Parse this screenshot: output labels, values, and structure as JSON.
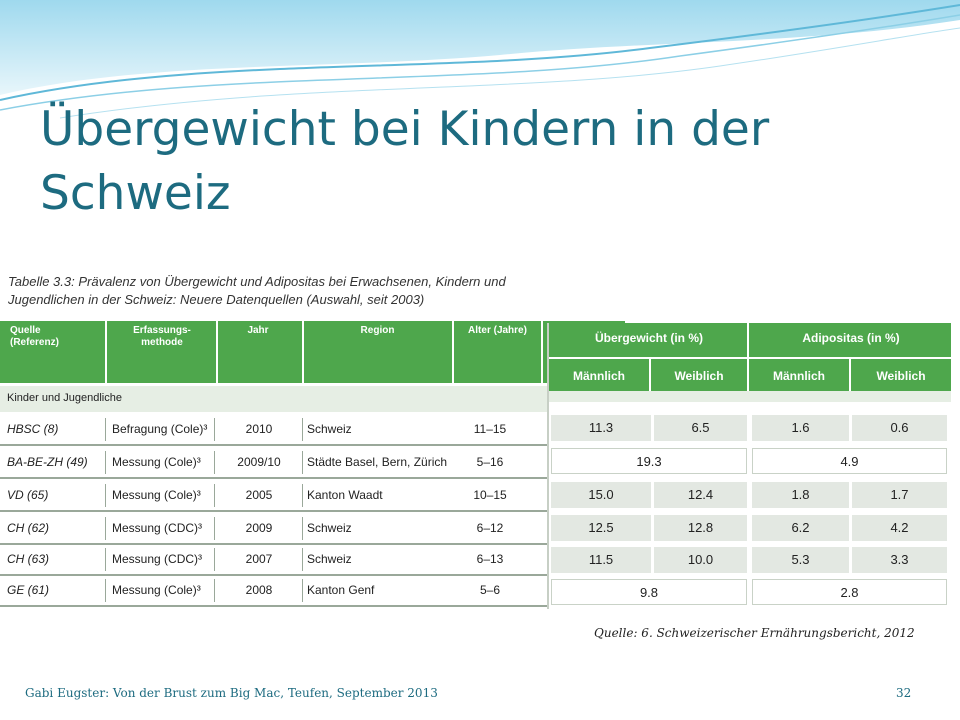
{
  "slide": {
    "title_line1": "Übergewicht bei Kindern in der",
    "title_line2": "Schweiz",
    "source": "Quelle: 6. Schweizerischer Ernährungsbericht, 2012",
    "footer": "Gabi Eugster: Von der Brust zum Big Mac, Teufen, September 2013",
    "page_number": "32"
  },
  "table_left": {
    "caption_line1": "Tabelle 3.3: Prävalenz von Übergewicht und Adipositas bei Erwachsenen, Kindern und",
    "caption_line2": "Jugendlichen in der Schweiz: Neuere Datenquellen (Auswahl, seit 2003)",
    "headers": {
      "quelle_1": "Quelle",
      "quelle_2": "(Referenz)",
      "methode_1": "Erfassungs-",
      "methode_2": "methode",
      "jahr": "Jahr",
      "region": "Region",
      "alter": "Alter (Jahre)"
    },
    "section_label": "Kinder und Jugendliche",
    "rows": [
      {
        "quelle": "HBSC (8)",
        "methode": "Befragung (Cole)³",
        "jahr": "2010",
        "region": "Schweiz",
        "alter": "11–15"
      },
      {
        "quelle": "BA-BE-ZH (49)",
        "methode": "Messung (Cole)³",
        "jahr": "2009/10",
        "region": "Städte Basel, Bern, Zürich",
        "alter": "5–16"
      },
      {
        "quelle": "VD (65)",
        "methode": "Messung (Cole)³",
        "jahr": "2005",
        "region": "Kanton Waadt",
        "alter": "10–15"
      },
      {
        "quelle": "CH (62)",
        "methode": "Messung (CDC)³",
        "jahr": "2009",
        "region": "Schweiz",
        "alter": "6–12"
      },
      {
        "quelle": "CH (63)",
        "methode": "Messung (CDC)³",
        "jahr": "2007",
        "region": "Schweiz",
        "alter": "6–13"
      },
      {
        "quelle": "GE (61)",
        "methode": "Messung (Cole)³",
        "jahr": "2008",
        "region": "Kanton Genf",
        "alter": "5–6"
      }
    ]
  },
  "table_right": {
    "group_1": "Übergewicht (in %)",
    "group_2": "Adipositas (in %)",
    "sub_m1": "Männlich",
    "sub_w1": "Weiblich",
    "sub_m2": "Männlich",
    "sub_w2": "Weiblich",
    "rows": [
      {
        "uem": "11.3",
        "uew": "6.5",
        "adm": "1.6",
        "adw": "0.6"
      },
      {
        "ue_all": "19.3",
        "ad_all": "4.9"
      },
      {
        "uem": "15.0",
        "uew": "12.4",
        "adm": "1.8",
        "adw": "1.7"
      },
      {
        "uem": "12.5",
        "uew": "12.8",
        "adm": "6.2",
        "adw": "4.2"
      },
      {
        "uem": "11.5",
        "uew": "10.0",
        "adm": "5.3",
        "adw": "3.3"
      },
      {
        "ue_all": "9.8",
        "ad_all": "2.8"
      }
    ]
  },
  "colors": {
    "title": "#1d6b80",
    "header_green": "#4ea74c",
    "wave_light": "#bfe6f2"
  }
}
